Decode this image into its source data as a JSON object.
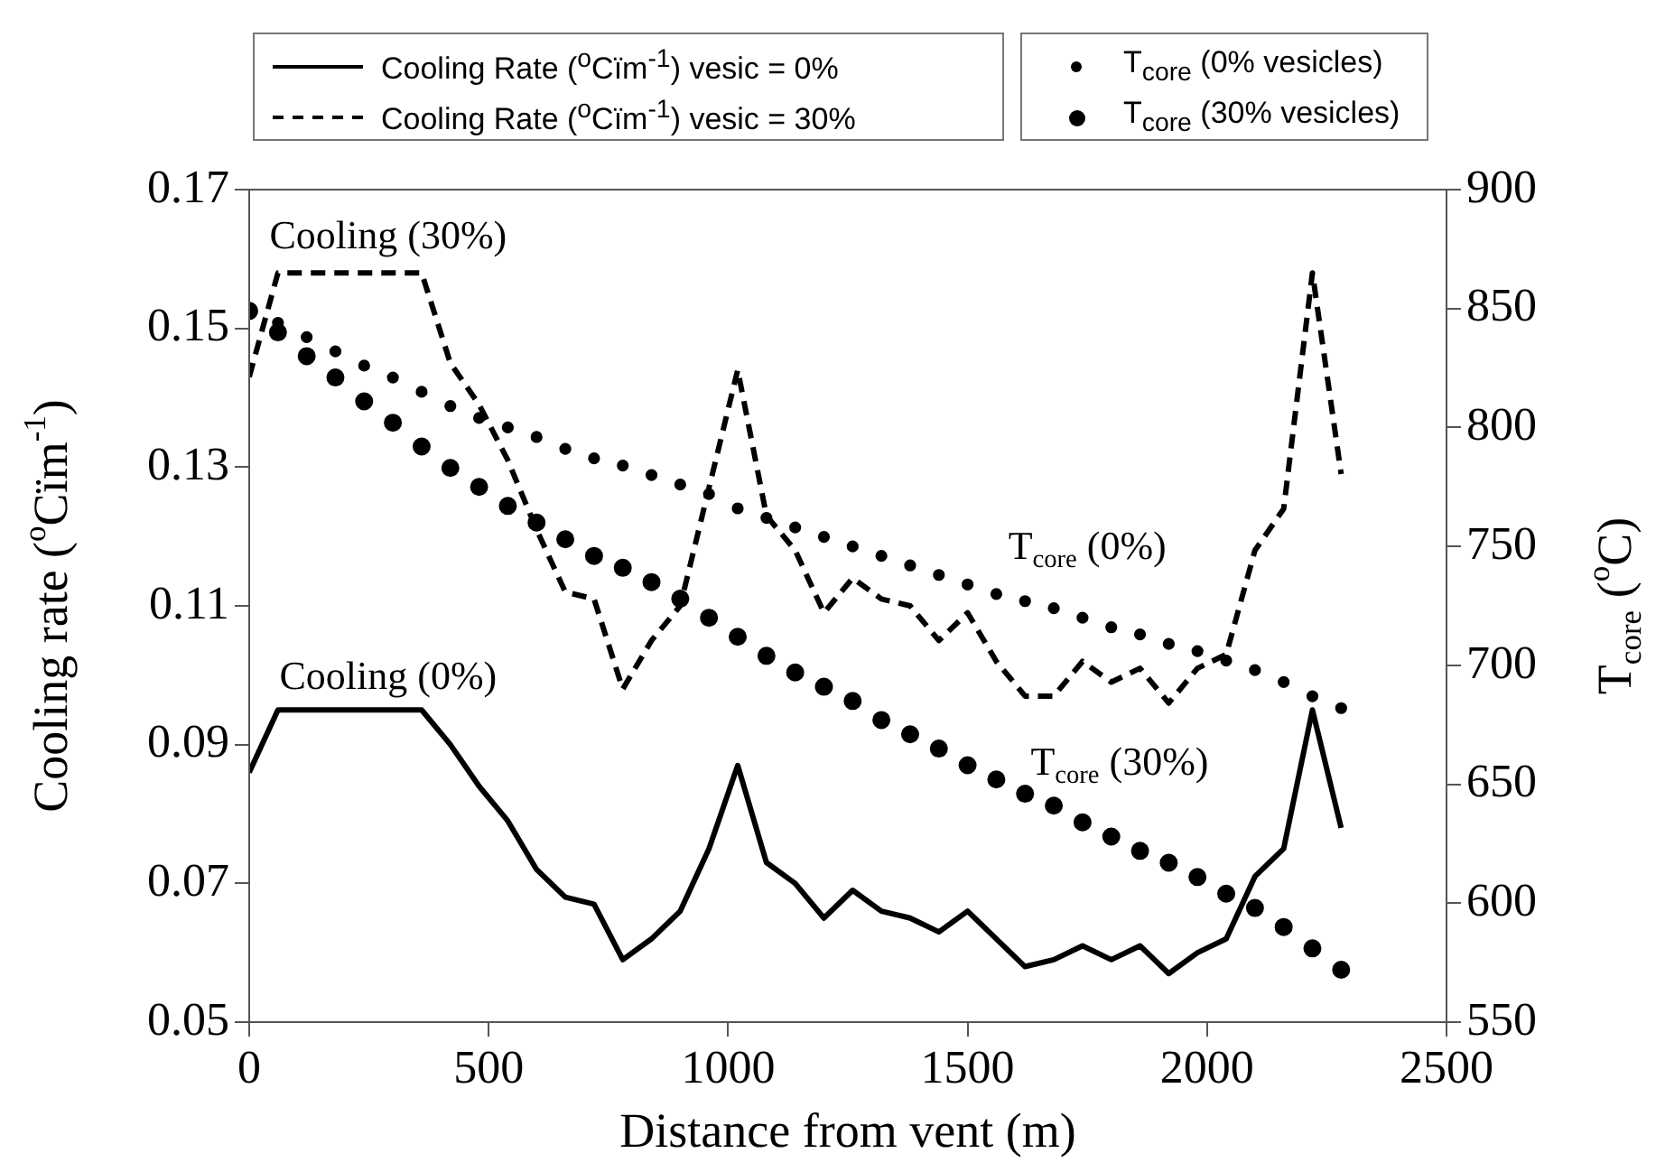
{
  "chart_data": {
    "type": "line",
    "xlabel": "Distance from vent (m)",
    "ylabel": "Cooling rate ($^{o}$Cïm$^{-1}$)",
    "y2label": "T$_{core}$ ($^{o}$C)",
    "x": [
      0,
      60,
      120,
      180,
      240,
      300,
      360,
      420,
      480,
      540,
      600,
      660,
      720,
      780,
      840,
      900,
      960,
      1020,
      1080,
      1140,
      1200,
      1260,
      1320,
      1380,
      1440,
      1500,
      1560,
      1620,
      1680,
      1740,
      1800,
      1860,
      1920,
      1980,
      2040,
      2100,
      2160,
      2220,
      2280
    ],
    "series": [
      {
        "name": "Cooling Rate ($^{o}$Cïm$^{-1}$) vesic = 0%",
        "line_style": "solid",
        "marker": "none",
        "color": "#000000",
        "values": [
          0.086,
          0.095,
          0.095,
          0.095,
          0.095,
          0.095,
          0.095,
          0.09,
          0.084,
          0.079,
          0.072,
          0.068,
          0.067,
          0.059,
          0.062,
          0.066,
          0.075,
          0.087,
          0.073,
          0.07,
          0.065,
          0.069,
          0.066,
          0.065,
          0.063,
          0.066,
          0.062,
          0.058,
          0.059,
          0.061,
          0.059,
          0.061,
          0.057,
          0.06,
          0.062,
          0.071,
          0.075,
          0.095,
          0.078
        ]
      },
      {
        "name": "Cooling Rate ($^{o}$Cïm$^{-1}$) vesic = 30%",
        "line_style": "dashed",
        "marker": "none",
        "color": "#000000",
        "values": [
          0.143,
          0.158,
          0.158,
          0.158,
          0.158,
          0.158,
          0.158,
          0.145,
          0.139,
          0.131,
          0.121,
          0.112,
          0.111,
          0.098,
          0.105,
          0.11,
          0.127,
          0.144,
          0.123,
          0.118,
          0.109,
          0.114,
          0.111,
          0.11,
          0.105,
          0.109,
          0.102,
          0.097,
          0.097,
          0.102,
          0.099,
          0.101,
          0.096,
          0.101,
          0.103,
          0.118,
          0.124,
          0.158,
          0.129
        ]
      },
      {
        "name": "T$_{core}$ (0% vesicles)",
        "type": "scatter",
        "axis": "y2",
        "marker": "circle",
        "color": "#000000",
        "values": [
          null,
          844,
          838,
          832,
          826,
          821,
          815,
          809,
          804,
          800,
          796,
          791,
          787,
          784,
          780,
          776,
          772,
          766,
          762,
          758,
          754,
          750,
          746,
          742,
          738,
          734,
          730,
          727,
          724,
          720,
          716,
          713,
          709,
          706,
          702,
          698,
          693,
          687,
          682
        ]
      },
      {
        "name": "T$_{core}$ (30% vesicles)",
        "type": "scatter",
        "axis": "y2",
        "marker": "circle",
        "color": "#000000",
        "values": [
          849,
          840,
          830,
          821,
          811,
          802,
          792,
          783,
          775,
          767,
          760,
          753,
          746,
          741,
          735,
          728,
          720,
          712,
          704,
          697,
          691,
          685,
          677,
          671,
          665,
          658,
          652,
          646,
          641,
          634,
          628,
          622,
          617,
          611,
          604,
          598,
          590,
          581,
          572
        ]
      }
    ],
    "xlim": [
      0,
      2500
    ],
    "xticks": [
      0,
      500,
      1000,
      1500,
      2000,
      2500
    ],
    "ylim": [
      0.05,
      0.17
    ],
    "yticks": [
      {
        "value": 0.05,
        "label": "0.05"
      },
      {
        "value": 0.07,
        "label": "0.07"
      },
      {
        "value": 0.09,
        "label": "0.09"
      },
      {
        "value": 0.11,
        "label": "0.11"
      },
      {
        "value": 0.13,
        "label": "0.13"
      },
      {
        "value": 0.15,
        "label": "0.15"
      },
      {
        "value": 0.17,
        "label": "0.17"
      }
    ],
    "y2lim": [
      550,
      900
    ],
    "y2ticks": [
      550,
      600,
      650,
      700,
      750,
      800,
      850,
      900
    ],
    "annotations": [
      "Cooling (30%)",
      "Cooling (0%)",
      "T$_{core}$ (0%)",
      "T$_{core}$ (30%)"
    ],
    "grid": false,
    "legend": "top"
  }
}
